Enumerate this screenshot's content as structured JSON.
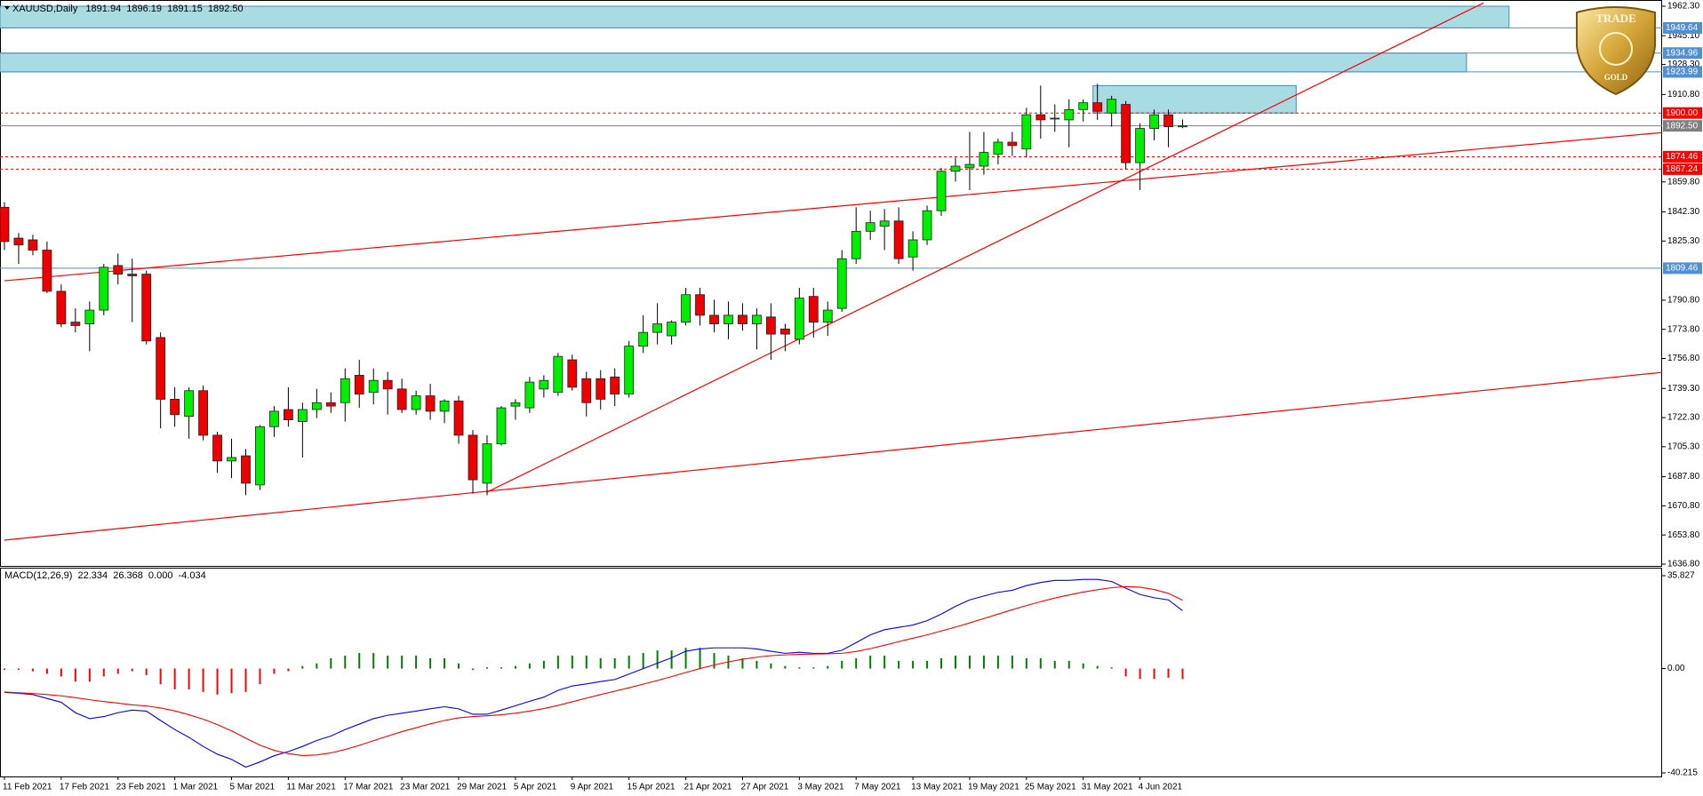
{
  "chart_data": [
    {
      "type": "candlestick",
      "title": "XAUUSD,Daily",
      "header_values": [
        1891.94,
        1896.19,
        1891.15,
        {
          "value": 1892.5,
          "label": "1892.50"
        }
      ],
      "categories": [
        "11 Feb 2021",
        null,
        null,
        null,
        "17 Feb 2021",
        null,
        null,
        null,
        "23 Feb 2021",
        null,
        null,
        null,
        "1 Mar 2021",
        null,
        null,
        null,
        "5 Mar 2021",
        null,
        null,
        null,
        "11 Mar 2021",
        null,
        null,
        null,
        "17 Mar 2021",
        null,
        null,
        null,
        "23 Mar 2021",
        null,
        null,
        null,
        "29 Mar 2021",
        null,
        null,
        null,
        "5 Apr 2021",
        null,
        null,
        null,
        "9 Apr 2021",
        null,
        null,
        null,
        "15 Apr 2021",
        null,
        null,
        null,
        "21 Apr 2021",
        null,
        null,
        null,
        "27 Apr 2021",
        null,
        null,
        null,
        "3 May 2021",
        null,
        null,
        null,
        "7 May 2021",
        null,
        null,
        null,
        "13 May 2021",
        null,
        null,
        null,
        "19 May 2021",
        null,
        null,
        null,
        "25 May 2021",
        null,
        null,
        null,
        "31 May 2021",
        null,
        null,
        null,
        "4 Jun 2021",
        null,
        null,
        null
      ],
      "open": [
        1845,
        1827,
        1826,
        1820,
        1796,
        1778,
        1777,
        1785,
        1811,
        1806,
        1806,
        1769,
        1733,
        1723,
        1738,
        1712,
        1697,
        1700,
        1683,
        1717,
        1727,
        1720,
        1727,
        1731,
        1731,
        1747,
        1737,
        1744,
        1739,
        1727,
        1735,
        1726,
        1732,
        1712,
        1684,
        1707,
        1729,
        1728,
        1739,
        1737,
        1756,
        1745,
        1745,
        1746,
        1736,
        1764,
        1772,
        1770,
        1778,
        1794,
        1782,
        1777,
        1782,
        1777,
        1781,
        1774,
        1768,
        1793,
        1778,
        1786,
        1815,
        1831,
        1834,
        1837,
        1816,
        1826,
        1843,
        1866,
        1868,
        1869,
        1876,
        1883,
        1879,
        1899,
        1897,
        1896,
        1902,
        1906,
        1900,
        1905,
        1871,
        1891,
        1899,
        1891.94
      ],
      "high": [
        1848,
        1830,
        1829,
        1825,
        1800,
        1786,
        1790,
        1812,
        1818,
        1815,
        1808,
        1772,
        1740,
        1740,
        1741,
        1714,
        1710,
        1704,
        1718,
        1729,
        1740,
        1731,
        1739,
        1737,
        1751,
        1756,
        1751,
        1749,
        1745,
        1738,
        1742,
        1733,
        1735,
        1715,
        1712,
        1729,
        1733,
        1746,
        1747,
        1760,
        1759,
        1749,
        1750,
        1751,
        1767,
        1782,
        1789,
        1779,
        1798,
        1798,
        1791,
        1790,
        1789,
        1786,
        1789,
        1777,
        1798,
        1798,
        1790,
        1820,
        1845,
        1843,
        1844,
        1845,
        1831,
        1846,
        1868,
        1874,
        1889,
        1889,
        1885,
        1889,
        1903,
        1916,
        1905,
        1908,
        1908,
        1917,
        1910,
        1907,
        1894,
        1902,
        1902,
        1896.19
      ],
      "low": [
        1820,
        1812,
        1817,
        1795,
        1775,
        1772,
        1761,
        1782,
        1800,
        1778,
        1765,
        1716,
        1717,
        1710,
        1709,
        1690,
        1687,
        1677,
        1680,
        1711,
        1717,
        1699,
        1722,
        1725,
        1720,
        1728,
        1730,
        1724,
        1725,
        1724,
        1721,
        1719,
        1707,
        1678,
        1677,
        1706,
        1721,
        1725,
        1734,
        1735,
        1738,
        1723,
        1727,
        1729,
        1734,
        1760,
        1765,
        1765,
        1776,
        1776,
        1772,
        1768,
        1773,
        1762,
        1756,
        1761,
        1765,
        1769,
        1770,
        1784,
        1812,
        1826,
        1820,
        1812,
        1808,
        1823,
        1840,
        1860,
        1855,
        1864,
        1870,
        1875,
        1874,
        1885,
        1889,
        1880,
        1895,
        1896,
        1892,
        1867,
        1855,
        1884,
        1880,
        1891.15
      ],
      "close": [
        1825,
        1823,
        1820,
        1796,
        1777,
        1776,
        1785,
        1810,
        1806,
        1805,
        1767,
        1733,
        1724,
        1738,
        1712,
        1697,
        1699,
        1684,
        1717,
        1726,
        1721,
        1727,
        1731,
        1729,
        1745,
        1736,
        1744,
        1739,
        1727,
        1735,
        1726,
        1732,
        1712,
        1686,
        1707,
        1728,
        1731,
        1743,
        1744,
        1758,
        1740,
        1731,
        1733,
        1736,
        1764,
        1772,
        1777,
        1778,
        1794,
        1782,
        1777,
        1782,
        1777,
        1782,
        1771,
        1771,
        1792,
        1778,
        1785,
        1815,
        1831,
        1836,
        1837,
        1815,
        1826,
        1843,
        1866,
        1869,
        1870,
        1877,
        1883,
        1881,
        1899,
        1896,
        1897,
        1902,
        1906,
        1901,
        1908,
        1871,
        1891,
        1899,
        1892,
        1892.5
      ],
      "up_color": "#00ee00",
      "down_color": "#ee0000",
      "ylim": [
        1636.8,
        1962.3
      ],
      "yticks": [
        {
          "value": 1962.3,
          "label": "1962.30"
        },
        {
          "value": 1945.1,
          "label": "1945.10"
        },
        {
          "value": 1928.3,
          "label": "1928.30"
        },
        {
          "value": 1910.8,
          "label": "1910.80"
        },
        {
          "value": 1859.8,
          "label": "1859.80"
        },
        {
          "value": 1842.3,
          "label": "1842.30"
        },
        {
          "value": 1825.3,
          "label": "1825.30"
        },
        {
          "value": 1790.8,
          "label": "1790.80"
        },
        {
          "value": 1773.8,
          "label": "1773.80"
        },
        {
          "value": 1756.8,
          "label": "1756.80"
        },
        {
          "value": 1739.3,
          "label": "1739.30"
        },
        {
          "value": 1722.3,
          "label": "1722.30"
        },
        {
          "value": 1705.3,
          "label": "1705.30"
        },
        {
          "value": 1687.8,
          "label": "1687.80"
        },
        {
          "value": 1670.8,
          "label": "1670.80"
        },
        {
          "value": 1653.8,
          "label": "1653.80"
        },
        {
          "value": 1636.8,
          "label": "1636.80"
        }
      ],
      "levels": [
        {
          "price": 1949.64,
          "color": "#4f8fd6",
          "line": "solid"
        },
        {
          "price": 1934.96,
          "color": "#4f8fd6",
          "line": "solid"
        },
        {
          "price": 1923.99,
          "color": "#4f8fd6",
          "line": "solid"
        },
        {
          "price": {
            "value": 1900,
            "label": "1900.00"
          },
          "color": "#ff0000",
          "line": "dashed"
        },
        {
          "price": {
            "value": 1892.5,
            "label": "1892.50"
          },
          "color": "#808080",
          "line": "solid"
        },
        {
          "price": 1874.46,
          "color": "#ff0000",
          "line": "dashed"
        },
        {
          "price": 1867.24,
          "color": "#ff0000",
          "line": "dashed"
        },
        {
          "price": 1809.46,
          "color": "#4f8fd6",
          "line": "solid"
        }
      ],
      "zones": [
        {
          "xlim": [
            0,
            106
          ],
          "ylim": [
            1949.64,
            1962.3
          ],
          "color": "#a9dbe3"
        },
        {
          "xlim": [
            0,
            103
          ],
          "ylim": [
            1923.99,
            1934.96
          ],
          "color": "#a9dbe3"
        },
        {
          "xlim": [
            77,
            91
          ],
          "ylim": [
            1900,
            1916
          ],
          "color": "#a9dbe3"
        }
      ],
      "trendlines": [
        {
          "x": [
            0,
            116.8
          ],
          "y": [
            1802.1,
            1888.6
          ],
          "color": "#ff0000"
        },
        {
          "x": [
            34,
            104.2
          ],
          "y": [
            1678.8,
            1964.2
          ],
          "color": "#ff0000"
        },
        {
          "x": [
            0,
            116.8
          ],
          "y": [
            1650.8,
            1748.7
          ],
          "color": "#ff0000"
        }
      ]
    },
    {
      "type": "macd",
      "title": "MACD(12,26,9)",
      "header_values": [
        22.334,
        26.368,
        {
          "value": 0,
          "label": "0.000"
        },
        -4.034
      ],
      "ylim": [
        -40.215,
        35.827
      ],
      "yticks": [
        35.827,
        {
          "value": 0,
          "label": "0.00"
        },
        -40.215
      ],
      "lines": [
        {
          "color": "#0000ff",
          "values": [
            -9.2,
            -9.5,
            -10,
            -11.5,
            -13,
            -17,
            -19.3,
            -18.5,
            -17,
            -16,
            -16.4,
            -20,
            -23.5,
            -26.5,
            -30,
            -33,
            -35,
            -38,
            -36,
            -33.6,
            -32,
            -30,
            -27.7,
            -26,
            -23.5,
            -21.4,
            -19.3,
            -18,
            -17.2,
            -16.4,
            -15.5,
            -14.7,
            -15.5,
            -17.6,
            -17.6,
            -16,
            -14.3,
            -12.6,
            -11,
            -8.4,
            -6.7,
            -5.9,
            -5,
            -4.2,
            -2.1,
            0,
            2.1,
            4.2,
            6.7,
            7.6,
            8,
            8,
            8,
            7.6,
            6.7,
            5.9,
            6.3,
            5.9,
            5.9,
            7.1,
            10,
            13,
            15,
            15.9,
            16.8,
            18.5,
            21,
            24,
            26.5,
            28,
            29.4,
            30.2,
            32,
            33.2,
            34,
            34,
            34.4,
            34.4,
            33.6,
            31,
            28.6,
            27.3,
            26.5,
            22.334
          ]
        },
        {
          "color": "#ff0000",
          "values": [
            -9,
            -9.3,
            -9.6,
            -10,
            -10.5,
            -11.2,
            -12,
            -12.7,
            -13.3,
            -14,
            -14.4,
            -15.2,
            -16.3,
            -17.8,
            -19.5,
            -21.6,
            -24,
            -26.8,
            -29.5,
            -31.5,
            -32.8,
            -33.5,
            -33.3,
            -32.5,
            -31.2,
            -29.6,
            -27.8,
            -26,
            -24.3,
            -22.8,
            -21.3,
            -20,
            -19,
            -18.5,
            -18.2,
            -17.8,
            -17.2,
            -16.4,
            -15.4,
            -14.2,
            -12.8,
            -11.4,
            -10,
            -8.7,
            -7.4,
            -6,
            -4.6,
            -3.1,
            -1.5,
            0,
            1.4,
            2.6,
            3.6,
            4.4,
            5,
            5.3,
            5.5,
            5.6,
            5.7,
            5.9,
            6.6,
            7.7,
            9,
            10.4,
            11.7,
            13,
            14.5,
            16,
            17.6,
            19.3,
            21,
            22.7,
            24.3,
            25.8,
            27.2,
            28.4,
            29.5,
            30.4,
            31.2,
            31.6,
            31.4,
            30.5,
            29,
            26.368
          ]
        }
      ],
      "histogram": {
        "up_color": "#008000",
        "down_color": "#ff0000",
        "values": [
          -0.5,
          -0.5,
          -1,
          -2,
          -3,
          -5,
          -5,
          -3,
          -2,
          -1,
          -2.5,
          -6,
          -8,
          -8,
          -9,
          -10,
          -9.5,
          -9,
          -6,
          -2,
          -1,
          1,
          2,
          4,
          5,
          6,
          6,
          5,
          5,
          5,
          4,
          4,
          2,
          -0.5,
          0.5,
          0.5,
          1,
          2,
          3,
          5,
          5,
          5,
          4,
          4,
          5,
          6,
          7,
          7,
          8,
          8,
          6,
          5,
          4,
          3,
          2,
          1,
          0.5,
          0.5,
          1,
          3,
          4,
          5,
          5,
          3,
          3,
          3,
          4,
          5,
          5,
          5,
          5,
          5,
          4,
          4,
          3,
          3,
          2,
          1,
          0.5,
          -3,
          -4,
          -4,
          -3.5,
          -4.034
        ]
      }
    }
  ],
  "logo": {
    "top": "TRADE",
    "bottom": "GOLD"
  }
}
